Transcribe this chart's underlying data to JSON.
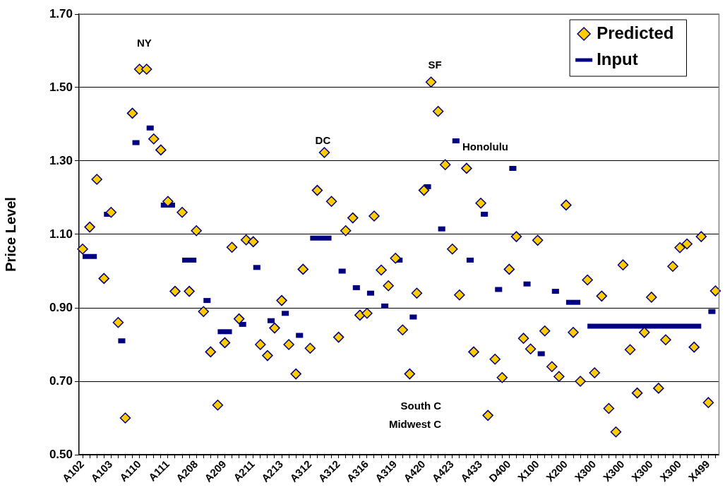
{
  "chart_data": {
    "type": "scatter",
    "ylabel": "Price Level",
    "categories": [
      "A102",
      null,
      null,
      null,
      "A103",
      null,
      null,
      null,
      "A110",
      null,
      null,
      null,
      "A111",
      null,
      null,
      null,
      "A208",
      null,
      null,
      null,
      "A209",
      null,
      null,
      null,
      "A211",
      null,
      null,
      null,
      "A213",
      null,
      null,
      null,
      "A312",
      null,
      null,
      null,
      "A312",
      null,
      null,
      null,
      "A316",
      null,
      null,
      null,
      "A319",
      null,
      null,
      null,
      "A420",
      null,
      null,
      null,
      "A423",
      null,
      null,
      null,
      "A433",
      null,
      null,
      null,
      "D400",
      null,
      null,
      null,
      "X100",
      null,
      null,
      null,
      "X200",
      null,
      null,
      null,
      "X300",
      null,
      null,
      null,
      "X300",
      null,
      null,
      null,
      "X300",
      null,
      null,
      null,
      "X300",
      null,
      null,
      null,
      "X499",
      null
    ],
    "series": [
      {
        "name": "Predicted",
        "marker": "diamond",
        "color": "#ffcc00",
        "values": [
          1.06,
          1.12,
          1.25,
          0.98,
          1.16,
          0.86,
          0.6,
          1.43,
          1.55,
          1.55,
          1.36,
          1.33,
          1.19,
          0.945,
          1.16,
          0.945,
          1.11,
          0.89,
          0.78,
          0.635,
          0.805,
          1.065,
          0.87,
          1.085,
          1.08,
          0.8,
          0.77,
          0.845,
          0.92,
          0.8,
          0.72,
          1.005,
          0.79,
          1.22,
          1.323,
          1.19,
          0.82,
          1.11,
          1.145,
          0.88,
          0.885,
          1.15,
          1.003,
          0.96,
          1.035,
          0.84,
          0.72,
          0.94,
          1.22,
          1.515,
          1.435,
          1.29,
          1.06,
          0.935,
          1.28,
          0.78,
          1.185,
          0.607,
          0.76,
          0.71,
          1.005,
          1.094,
          0.817,
          0.788,
          1.084,
          0.837,
          0.74,
          0.713,
          1.18,
          0.833,
          0.7,
          0.976,
          0.723,
          0.932,
          0.626,
          0.562,
          1.017,
          0.786,
          0.668,
          0.833,
          0.929,
          0.681,
          0.813,
          1.013,
          1.064,
          1.074,
          0.793,
          1.094,
          0.642,
          0.946
        ]
      },
      {
        "name": "Input",
        "type": "line",
        "marker": "none",
        "color": "#000080",
        "values": [
          1.04,
          1.04,
          1.04,
          1.155,
          1.155,
          0.81,
          0.81,
          1.35,
          1.35,
          1.39,
          1.39,
          1.18,
          1.18,
          1.18,
          1.03,
          1.03,
          1.03,
          0.92,
          0.92,
          0.835,
          0.835,
          0.835,
          0.855,
          0.855,
          1.01,
          1.01,
          0.865,
          0.865,
          0.885,
          0.885,
          0.825,
          0.825,
          1.09,
          1.09,
          1.09,
          1.09,
          1.0,
          1.0,
          0.955,
          0.955,
          0.94,
          0.94,
          0.905,
          0.905,
          1.03,
          1.03,
          0.875,
          0.875,
          1.23,
          1.23,
          1.115,
          1.115,
          1.355,
          1.355,
          1.03,
          1.03,
          1.155,
          1.155,
          0.95,
          0.95,
          1.28,
          1.28,
          0.965,
          0.965,
          0.775,
          0.775,
          0.945,
          0.945,
          0.915,
          0.915,
          0.915,
          0.85,
          0.85,
          0.85,
          0.85,
          0.85,
          0.85,
          0.85,
          0.85,
          0.85,
          0.85,
          0.85,
          0.85,
          0.85,
          0.85,
          0.85,
          0.85,
          0.85,
          0.89,
          0.89
        ]
      }
    ],
    "ylim": [
      0.5,
      1.7
    ],
    "yticks": [
      {
        "value": 0.5,
        "label": "0.50"
      },
      {
        "value": 0.7,
        "label": "0.70"
      },
      {
        "value": 0.9,
        "label": "0.90"
      },
      {
        "value": 1.1,
        "label": "1.10"
      },
      {
        "value": 1.3,
        "label": "1.30"
      },
      {
        "value": 1.5,
        "label": "1.50"
      },
      {
        "value": 1.7,
        "label": "1.70"
      }
    ],
    "grid": "y",
    "legend": "top right",
    "annotations": [
      "NY",
      "DC",
      "SF",
      "Honolulu",
      "South C",
      "Midwest C"
    ]
  }
}
